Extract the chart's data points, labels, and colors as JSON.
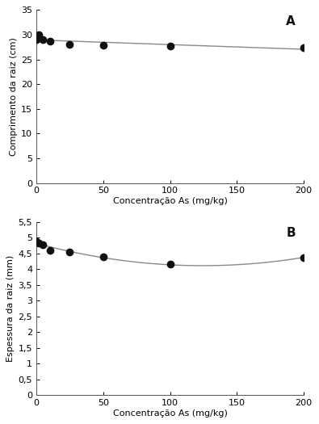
{
  "panel_A": {
    "label": "A",
    "x_data": [
      0,
      2,
      5,
      10,
      25,
      50,
      100,
      200
    ],
    "y_data": [
      29.0,
      30.0,
      29.0,
      28.7,
      28.1,
      27.9,
      27.7,
      27.4
    ],
    "ylabel": "Comprimento da raiz (cm)",
    "xlabel": "Concentração As (mg/kg)",
    "ylim": [
      0,
      35
    ],
    "yticks": [
      0,
      5,
      10,
      15,
      20,
      25,
      30,
      35
    ],
    "xticks": [
      0,
      50,
      100,
      150,
      200
    ],
    "fit_degree": 1
  },
  "panel_B": {
    "label": "B",
    "x_data": [
      0,
      2,
      5,
      10,
      25,
      50,
      100,
      200
    ],
    "y_data": [
      4.88,
      4.82,
      4.78,
      4.6,
      4.55,
      4.38,
      4.15,
      4.37
    ],
    "ylabel": "Espessura da raiz (mm)",
    "xlabel": "Concentração As (mg/kg)",
    "ylim": [
      0,
      5.5
    ],
    "yticks": [
      0,
      0.5,
      1.0,
      1.5,
      2.0,
      2.5,
      3.0,
      3.5,
      4.0,
      4.5,
      5.0,
      5.5
    ],
    "xticks": [
      0,
      50,
      100,
      150,
      200
    ],
    "fit_degree": 2
  },
  "fig_background": "#ffffff",
  "axes_background": "#ffffff",
  "line_color": "#888888",
  "marker_color": "#111111",
  "marker_size": 6,
  "line_width": 1.0,
  "font_size": 8,
  "label_font_size": 8,
  "tick_font_size": 8
}
